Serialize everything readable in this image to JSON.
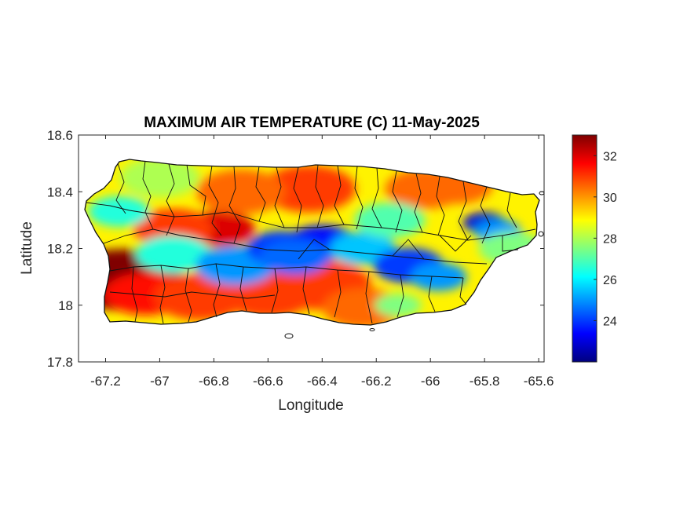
{
  "figure": {
    "title": "MAXIMUM AIR TEMPERATURE (C) 11-May-2025",
    "xlabel": "Longitude",
    "ylabel": "Latitude"
  },
  "map": {
    "region": "Puerto Rico",
    "variable": "maximum air temperature",
    "units": "C",
    "xlim": [
      -67.3,
      -65.58
    ],
    "ylim": [
      17.8,
      18.6
    ],
    "xticks": [
      "-67.2",
      "-67",
      "-66.8",
      "-66.6",
      "-66.4",
      "-66.2",
      "-66",
      "-65.8",
      "-65.6"
    ],
    "xtick_values": [
      -67.2,
      -67.0,
      -66.8,
      -66.6,
      -66.4,
      -66.2,
      -66.0,
      -65.8,
      -65.6
    ],
    "yticks": [
      "18.6",
      "18.4",
      "18.2",
      "18"
    ],
    "ytick_values": [
      18.6,
      18.4,
      18.2,
      18.0
    ],
    "ytick_bottom": "17.8",
    "ytick_bottom_value": 17.8,
    "colormap": "jet",
    "municipal_boundaries": true
  },
  "colorbar": {
    "range": [
      22,
      33
    ],
    "ticks": [
      "32",
      "30",
      "28",
      "26",
      "24"
    ],
    "tick_values": [
      32,
      30,
      28,
      26,
      24
    ],
    "colors": [
      "#00007f",
      "#0000ff",
      "#007fff",
      "#00ffff",
      "#7fff7f",
      "#ffff00",
      "#ff7f00",
      "#ff0000",
      "#7f0000"
    ]
  },
  "temperature_field": {
    "background_c": 29,
    "features": [
      {
        "lon": -67.14,
        "lat": 18.09,
        "temp_c": 33.0,
        "desc": "hot southwest corner"
      },
      {
        "lon": -67.05,
        "lat": 18.04,
        "temp_c": 31.5
      },
      {
        "lon": -66.85,
        "lat": 18.03,
        "temp_c": 31.0
      },
      {
        "lon": -66.6,
        "lat": 18.04,
        "temp_c": 31.0
      },
      {
        "lon": -66.4,
        "lat": 18.07,
        "temp_c": 31.0
      },
      {
        "lon": -66.25,
        "lat": 17.99,
        "temp_c": 30.5
      },
      {
        "lon": -66.78,
        "lat": 18.27,
        "temp_c": 32.0
      },
      {
        "lon": -66.95,
        "lat": 18.27,
        "temp_c": 31.0
      },
      {
        "lon": -66.45,
        "lat": 18.41,
        "temp_c": 31.0
      },
      {
        "lon": -66.7,
        "lat": 18.4,
        "temp_c": 30.5
      },
      {
        "lon": -66.02,
        "lat": 18.41,
        "temp_c": 30.5
      },
      {
        "lon": -65.9,
        "lat": 18.42,
        "temp_c": 30.5
      },
      {
        "lon": -66.95,
        "lat": 18.18,
        "temp_c": 26.5
      },
      {
        "lon": -66.72,
        "lat": 18.14,
        "temp_c": 25.0
      },
      {
        "lon": -66.55,
        "lat": 18.2,
        "temp_c": 24.0
      },
      {
        "lon": -66.4,
        "lat": 18.22,
        "temp_c": 23.5
      },
      {
        "lon": -66.5,
        "lat": 18.17,
        "temp_c": 24.5
      },
      {
        "lon": -66.25,
        "lat": 18.2,
        "temp_c": 25.5
      },
      {
        "lon": -66.08,
        "lat": 18.14,
        "temp_c": 24.0
      },
      {
        "lon": -65.97,
        "lat": 18.1,
        "temp_c": 25.0
      },
      {
        "lon": -65.8,
        "lat": 18.29,
        "temp_c": 23.0
      },
      {
        "lon": -65.75,
        "lat": 18.26,
        "temp_c": 25.0
      },
      {
        "lon": -67.15,
        "lat": 18.33,
        "temp_c": 26.5
      },
      {
        "lon": -66.15,
        "lat": 18.3,
        "temp_c": 27.0
      },
      {
        "lon": -65.7,
        "lat": 18.2,
        "temp_c": 27.5
      },
      {
        "lon": -67.0,
        "lat": 18.45,
        "temp_c": 28.0
      },
      {
        "lon": -66.12,
        "lat": 18.0,
        "temp_c": 27.5
      }
    ]
  }
}
